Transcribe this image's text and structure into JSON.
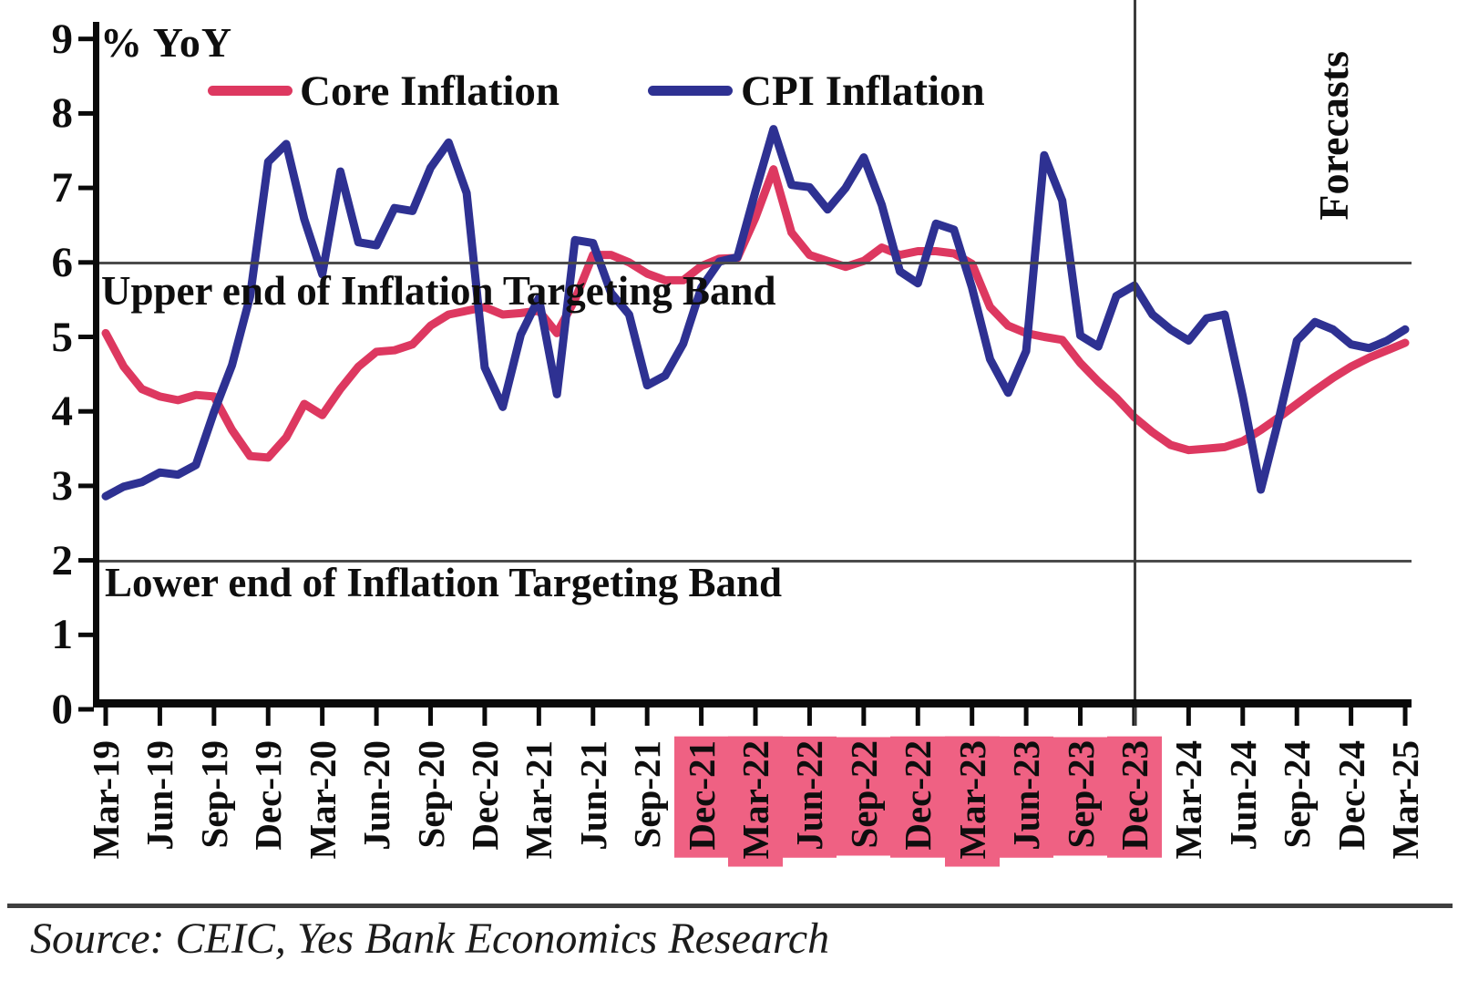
{
  "unit_label": "% YoY",
  "forecasts_label": "Forecasts",
  "annotations": {
    "upper_band": "Upper end of Inflation Targeting Band",
    "lower_band": "Lower end of Inflation Targeting Band"
  },
  "source": {
    "text": "Source: CEIC, Yes Bank Economics Research"
  },
  "colors": {
    "core": "#dd3860",
    "cpi": "#2e3192",
    "highlight": "#ef6183",
    "refline": "#4b4b4b",
    "axis": "#0a0a0a"
  },
  "chart_data": {
    "type": "line",
    "frequency": "monthly",
    "x": [
      "Mar-19",
      "Apr-19",
      "May-19",
      "Jun-19",
      "Jul-19",
      "Aug-19",
      "Sep-19",
      "Oct-19",
      "Nov-19",
      "Dec-19",
      "Jan-20",
      "Feb-20",
      "Mar-20",
      "Apr-20",
      "May-20",
      "Jun-20",
      "Jul-20",
      "Aug-20",
      "Sep-20",
      "Oct-20",
      "Nov-20",
      "Dec-20",
      "Jan-21",
      "Feb-21",
      "Mar-21",
      "Apr-21",
      "May-21",
      "Jun-21",
      "Jul-21",
      "Aug-21",
      "Sep-21",
      "Oct-21",
      "Nov-21",
      "Dec-21",
      "Jan-22",
      "Feb-22",
      "Mar-22",
      "Apr-22",
      "May-22",
      "Jun-22",
      "Jul-22",
      "Aug-22",
      "Sep-22",
      "Oct-22",
      "Nov-22",
      "Dec-22",
      "Jan-23",
      "Feb-23",
      "Mar-23",
      "Apr-23",
      "May-23",
      "Jun-23",
      "Jul-23",
      "Aug-23",
      "Sep-23",
      "Oct-23",
      "Nov-23",
      "Dec-23",
      "Jan-24",
      "Feb-24",
      "Mar-24",
      "Apr-24",
      "May-24",
      "Jun-24",
      "Jul-24",
      "Aug-24",
      "Sep-24",
      "Oct-24",
      "Nov-24",
      "Dec-24",
      "Jan-25",
      "Feb-25",
      "Mar-25"
    ],
    "series": [
      {
        "name": "Core Inflation",
        "color": "#dd3860",
        "values": [
          5.05,
          4.6,
          4.3,
          4.2,
          4.15,
          4.22,
          4.2,
          3.75,
          3.4,
          3.38,
          3.65,
          4.1,
          3.95,
          4.3,
          4.6,
          4.8,
          4.82,
          4.9,
          5.15,
          5.3,
          5.35,
          5.4,
          5.3,
          5.32,
          5.35,
          5.05,
          5.5,
          6.1,
          6.1,
          6.0,
          5.85,
          5.76,
          5.76,
          5.95,
          6.05,
          6.06,
          6.6,
          7.25,
          6.4,
          6.1,
          6.02,
          5.94,
          6.02,
          6.2,
          6.1,
          6.15,
          6.15,
          6.12,
          5.98,
          5.4,
          5.15,
          5.05,
          5.0,
          4.96,
          4.65,
          4.4,
          4.18,
          3.92,
          3.72,
          3.55,
          3.48,
          3.5,
          3.52,
          3.6,
          3.75,
          3.92,
          4.1,
          4.28,
          4.45,
          4.6,
          4.72,
          4.82,
          4.92
        ]
      },
      {
        "name": "CPI Inflation",
        "color": "#2e3192",
        "values": [
          2.86,
          2.99,
          3.05,
          3.18,
          3.15,
          3.28,
          3.99,
          4.62,
          5.54,
          7.35,
          7.59,
          6.58,
          5.84,
          7.22,
          6.27,
          6.23,
          6.73,
          6.69,
          7.27,
          7.61,
          6.93,
          4.59,
          4.06,
          5.03,
          5.52,
          4.23,
          6.3,
          6.26,
          5.59,
          5.3,
          4.35,
          4.48,
          4.91,
          5.66,
          6.01,
          6.07,
          6.95,
          7.79,
          7.04,
          7.01,
          6.71,
          7.0,
          7.41,
          6.77,
          5.88,
          5.72,
          6.52,
          6.44,
          5.66,
          4.7,
          4.25,
          4.81,
          7.44,
          6.83,
          5.02,
          4.87,
          5.55,
          5.69,
          5.3,
          5.1,
          4.95,
          5.25,
          5.3,
          4.2,
          2.95,
          3.9,
          4.95,
          5.2,
          5.1,
          4.9,
          4.85,
          4.95,
          5.1
        ]
      }
    ],
    "y_axis": {
      "min": 0,
      "max": 9,
      "ticks": [
        0,
        1,
        2,
        3,
        4,
        5,
        6,
        7,
        8,
        9
      ]
    },
    "x_tick_labels": [
      "Mar-19",
      "Jun-19",
      "Sep-19",
      "Dec-19",
      "Mar-20",
      "Jun-20",
      "Sep-20",
      "Dec-20",
      "Mar-21",
      "Jun-21",
      "Sep-21",
      "Dec-21",
      "Mar-22",
      "Jun-22",
      "Sep-22",
      "Dec-22",
      "Mar-23",
      "Jun-23",
      "Sep-23",
      "Dec-23",
      "Mar-24",
      "Jun-24",
      "Sep-24",
      "Dec-24",
      "Mar-25"
    ],
    "highlighted_x_labels": [
      "Dec-21",
      "Mar-22",
      "Jun-22",
      "Sep-22",
      "Dec-22",
      "Mar-23",
      "Jun-23",
      "Sep-23",
      "Dec-23"
    ],
    "reference_lines": [
      {
        "value": 6,
        "label": "Upper end of Inflation Targeting Band"
      },
      {
        "value": 2,
        "label": "Lower end of Inflation Targeting Band"
      }
    ],
    "forecast_divider_month": "Dec-23",
    "grid": false,
    "legend_position": "top"
  }
}
